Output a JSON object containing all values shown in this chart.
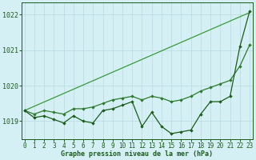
{
  "x": [
    0,
    1,
    2,
    3,
    4,
    5,
    6,
    7,
    8,
    9,
    10,
    11,
    12,
    13,
    14,
    15,
    16,
    17,
    18,
    19,
    20,
    21,
    22,
    23
  ],
  "line1_jagged": [
    1019.3,
    1019.1,
    1019.15,
    1019.05,
    1018.95,
    1019.15,
    1019.0,
    1018.95,
    1019.3,
    1019.35,
    1019.45,
    1019.55,
    1018.85,
    1019.25,
    1018.85,
    1018.65,
    1018.7,
    1018.75,
    1019.2,
    1019.55,
    1019.55,
    1019.7,
    1021.1,
    1022.1
  ],
  "line2_smooth": [
    1019.3,
    1019.2,
    1019.3,
    1019.25,
    1019.2,
    1019.35,
    1019.35,
    1019.4,
    1019.5,
    1019.6,
    1019.65,
    1019.7,
    1019.6,
    1019.7,
    1019.65,
    1019.55,
    1019.6,
    1019.7,
    1019.85,
    1019.95,
    1020.05,
    1020.15,
    1020.55,
    1021.15
  ],
  "line3_trend": [
    1019.3,
    1019.42,
    1019.54,
    1019.66,
    1019.78,
    1019.9,
    1020.02,
    1020.14,
    1020.26,
    1020.38,
    1020.5,
    1020.62,
    1020.74,
    1020.86,
    1020.98,
    1021.1,
    1021.22,
    1021.34,
    1021.46,
    1021.58,
    1021.7,
    1021.82,
    1021.94,
    1022.06
  ],
  "ylim": [
    1018.5,
    1022.35
  ],
  "yticks": [
    1019,
    1020,
    1021,
    1022
  ],
  "xlabel": "Graphe pression niveau de la mer (hPa)",
  "bg_color": "#d4f0f4",
  "grid_color": "#b8d8e0",
  "line_color_dark": "#1a5c1a",
  "line_color_mid": "#2d7a2d",
  "line_color_light": "#3a9a3a",
  "marker_size": 2.2,
  "line_width": 0.9,
  "tick_fontsize": 5.5,
  "label_fontsize": 6.0
}
